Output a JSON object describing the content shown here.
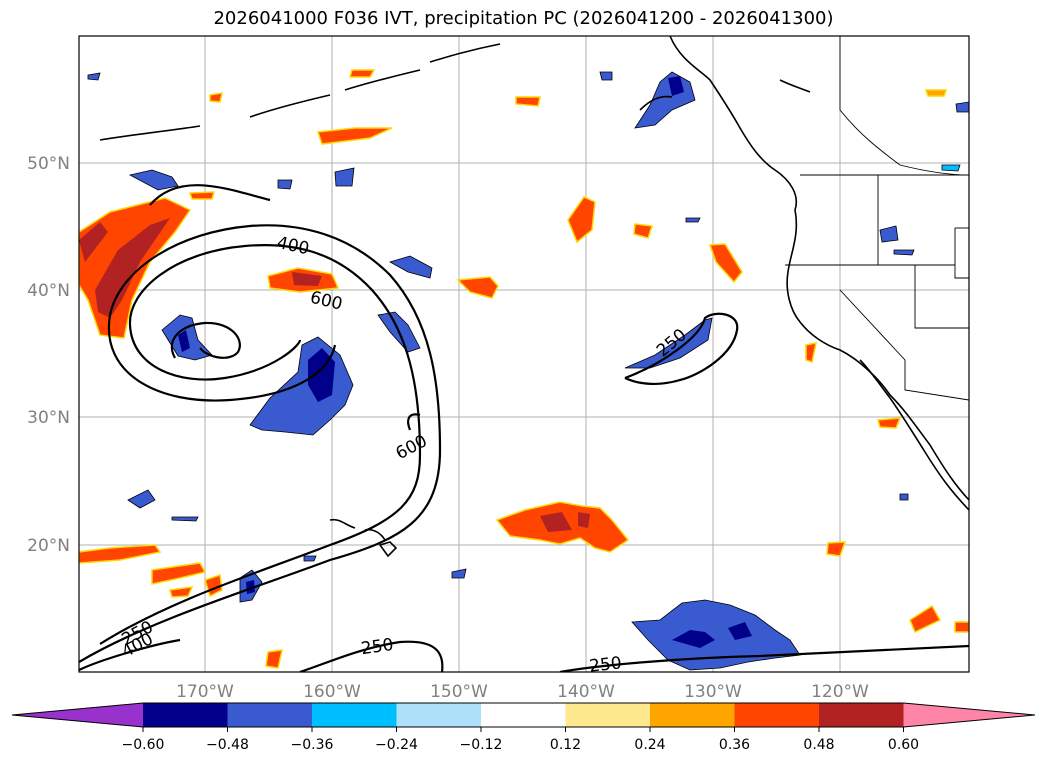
{
  "title": "2026041000 F036 IVT, precipitation PC (2026041200 - 2026041300)",
  "map": {
    "lat_labels": [
      "50°N",
      "40°N",
      "30°N",
      "20°N"
    ],
    "lon_labels": [
      "170°W",
      "160°W",
      "150°W",
      "140°W",
      "130°W",
      "120°W"
    ],
    "contour_labels": [
      "400",
      "600",
      "600",
      "250",
      "250",
      "400",
      "250",
      "250"
    ],
    "colors": {
      "coast": "#000000",
      "grid": "#b0b0b0"
    }
  },
  "colorbar": {
    "ticks": [
      "−0.60",
      "−0.48",
      "−0.36",
      "−0.24",
      "−0.12",
      "0.12",
      "0.24",
      "0.36",
      "0.48",
      "0.60"
    ],
    "colors": [
      "#9932cc",
      "#00008b",
      "#3a5bd0",
      "#00bfff",
      "#aee0fa",
      "#ffffff",
      "#ffe98e",
      "#ffa500",
      "#ff4500",
      "#b22222",
      "#ff85a8"
    ]
  }
}
